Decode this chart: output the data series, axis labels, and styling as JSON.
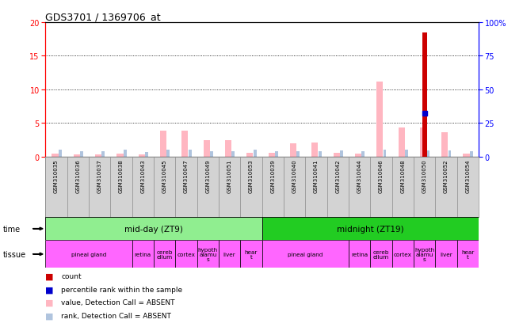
{
  "title": "GDS3701 / 1369706_at",
  "samples": [
    "GSM310035",
    "GSM310036",
    "GSM310037",
    "GSM310038",
    "GSM310043",
    "GSM310045",
    "GSM310047",
    "GSM310049",
    "GSM310051",
    "GSM310053",
    "GSM310039",
    "GSM310040",
    "GSM310041",
    "GSM310042",
    "GSM310044",
    "GSM310046",
    "GSM310048",
    "GSM310050",
    "GSM310052",
    "GSM310054"
  ],
  "count_values": [
    0,
    0,
    0,
    0,
    0,
    0,
    0,
    0,
    0,
    0,
    0,
    0,
    0,
    0,
    0,
    0,
    0,
    18.5,
    0,
    0
  ],
  "percentile_rank": [
    0,
    0,
    0,
    0,
    0,
    0,
    0,
    0,
    0,
    0,
    0,
    0,
    0,
    0,
    0,
    0,
    0,
    6.5,
    0,
    0
  ],
  "absent_value": [
    0.4,
    0.3,
    0.3,
    0.4,
    0.3,
    3.9,
    3.9,
    2.5,
    2.5,
    0.5,
    0.5,
    2.0,
    2.1,
    0.5,
    0.4,
    11.2,
    4.3,
    4.3,
    3.6,
    0.4
  ],
  "absent_rank": [
    1.0,
    0.8,
    0.8,
    1.0,
    0.7,
    1.0,
    1.0,
    0.8,
    0.8,
    1.0,
    0.8,
    0.8,
    0.8,
    0.9,
    0.8,
    1.0,
    1.0,
    0.9,
    0.9,
    0.8
  ],
  "ylim_left": [
    0,
    20
  ],
  "ylim_right": [
    0,
    100
  ],
  "yticks_left": [
    0,
    5,
    10,
    15,
    20
  ],
  "yticks_right": [
    0,
    25,
    50,
    75,
    100
  ],
  "time_groups": [
    {
      "label": "mid-day (ZT9)",
      "start": 0,
      "end": 10,
      "color": "#90EE90"
    },
    {
      "label": "midnight (ZT19)",
      "start": 10,
      "end": 20,
      "color": "#22CC22"
    }
  ],
  "tissue_groups": [
    {
      "label": "pineal gland",
      "start": 0,
      "end": 4
    },
    {
      "label": "retina",
      "start": 4,
      "end": 5
    },
    {
      "label": "cereb\nellum",
      "start": 5,
      "end": 6
    },
    {
      "label": "cortex",
      "start": 6,
      "end": 7
    },
    {
      "label": "hypoth\nalamu\ns",
      "start": 7,
      "end": 8
    },
    {
      "label": "liver",
      "start": 8,
      "end": 9
    },
    {
      "label": "hear\nt",
      "start": 9,
      "end": 10
    },
    {
      "label": "pineal gland",
      "start": 10,
      "end": 14
    },
    {
      "label": "retina",
      "start": 14,
      "end": 15
    },
    {
      "label": "cereb\nellum",
      "start": 15,
      "end": 16
    },
    {
      "label": "cortex",
      "start": 16,
      "end": 17
    },
    {
      "label": "hypoth\nalamu\ns",
      "start": 17,
      "end": 18
    },
    {
      "label": "liver",
      "start": 18,
      "end": 19
    },
    {
      "label": "hear\nt",
      "start": 19,
      "end": 20
    }
  ],
  "tissue_color": "#FF66FF",
  "count_color": "#CC0000",
  "percentile_color": "#0000CC",
  "absent_value_color": "#FFB6C1",
  "absent_rank_color": "#B0C4DE",
  "sample_bg_color": "#D3D3D3",
  "legend_items": [
    {
      "label": "count",
      "color": "#CC0000"
    },
    {
      "label": "percentile rank within the sample",
      "color": "#0000CC"
    },
    {
      "label": "value, Detection Call = ABSENT",
      "color": "#FFB6C1"
    },
    {
      "label": "rank, Detection Call = ABSENT",
      "color": "#B0C4DE"
    }
  ]
}
